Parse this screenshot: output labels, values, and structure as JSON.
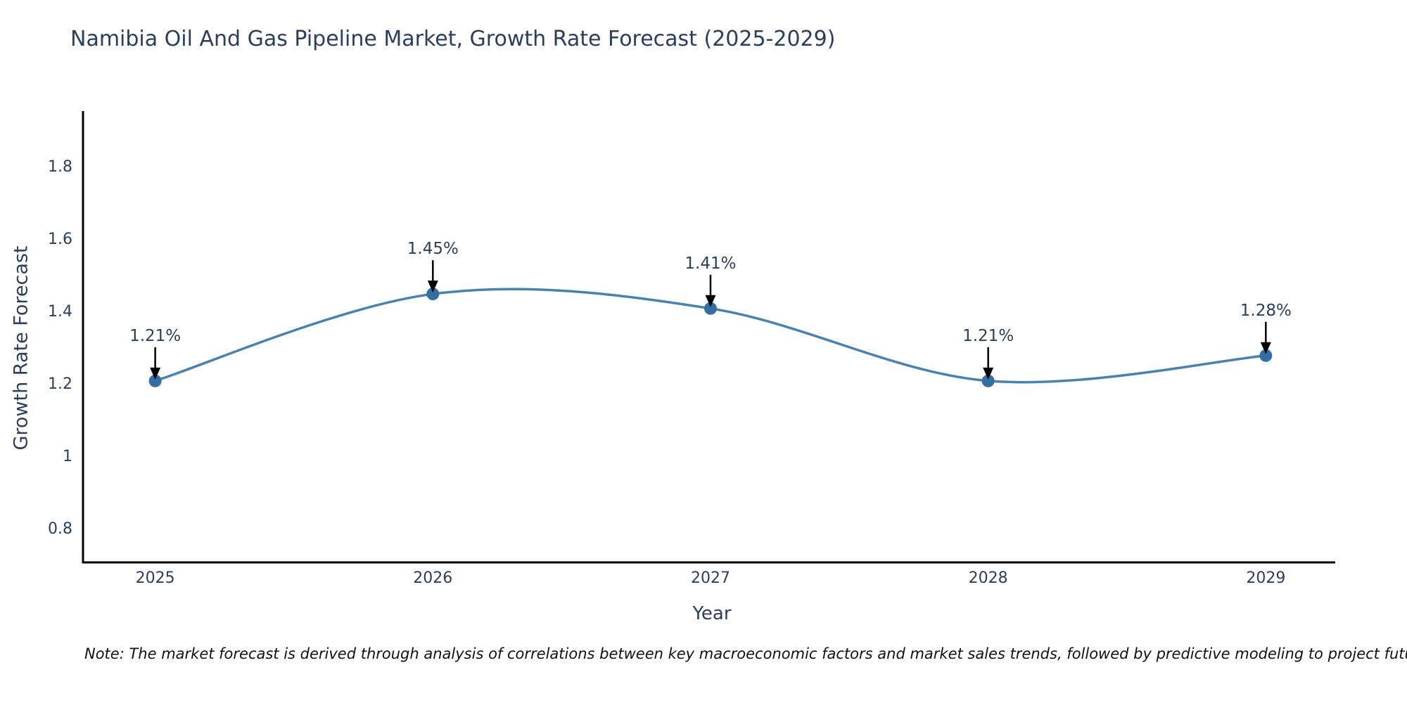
{
  "chart_data": {
    "type": "line",
    "title": "Namibia Oil And Gas Pipeline Market, Growth Rate Forecast (2025-2029)",
    "xlabel": "Year",
    "ylabel": "Growth Rate Forecast",
    "x": [
      2025,
      2026,
      2027,
      2028,
      2029
    ],
    "values": [
      1.21,
      1.45,
      1.41,
      1.21,
      1.28
    ],
    "point_labels": [
      "1.21%",
      "1.45%",
      "1.41%",
      "1.21%",
      "1.28%"
    ],
    "x_tick_labels": [
      "2025",
      "2026",
      "2027",
      "2028",
      "2029"
    ],
    "y_tick_labels": [
      "0.8",
      "1",
      "1.2",
      "1.4",
      "1.6",
      "1.8"
    ],
    "y_tick_values": [
      0.8,
      1.0,
      1.2,
      1.4,
      1.6,
      1.8
    ],
    "xlim": [
      2024.74,
      2029.25
    ],
    "ylim": [
      0.709,
      1.951
    ],
    "grid": false,
    "legend": "none",
    "line_shape": "spline",
    "colors": {
      "line": "#4682b4",
      "marker": "#336fa5",
      "arrow": "#000000",
      "axis": "#000000",
      "text": "#2a3f5f"
    },
    "note": "Note: The market forecast is derived through analysis of correlations between key macroeconomic factors and market sales trends, followed by predictive modeling to project future sales"
  }
}
